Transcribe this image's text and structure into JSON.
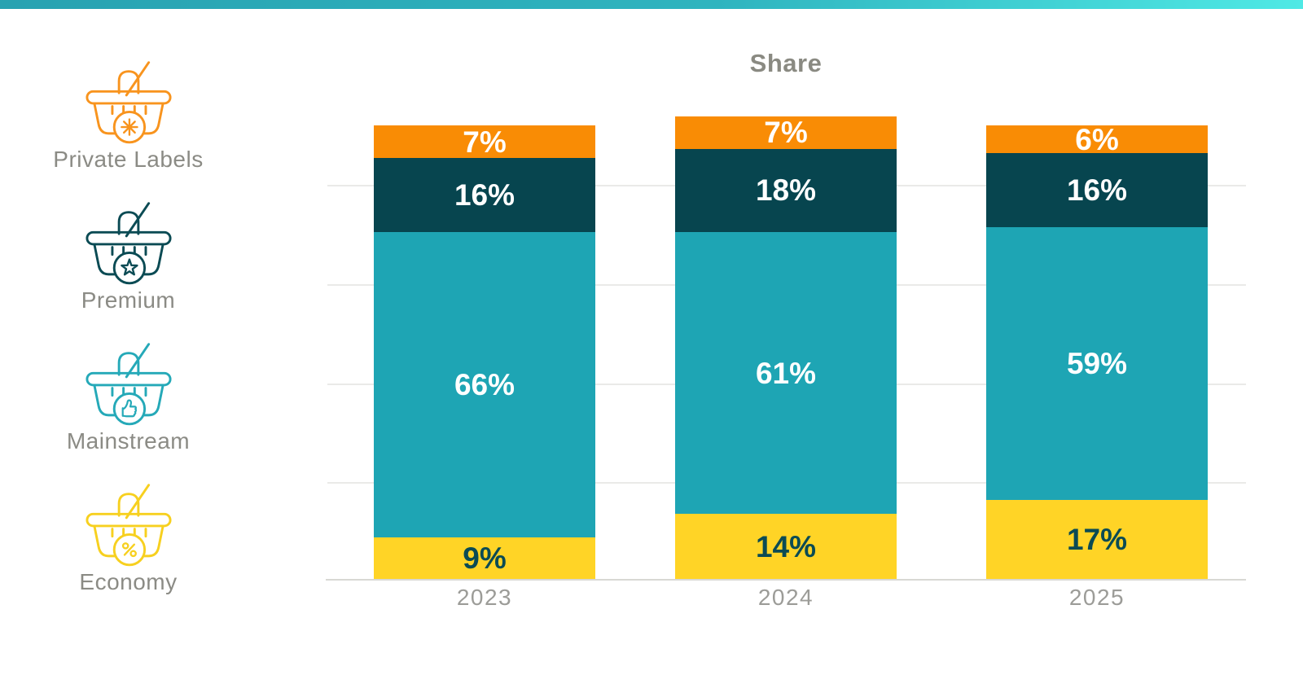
{
  "banner": {
    "gradient_colors": [
      "#28A2B1",
      "#2FB4BF",
      "#4FE9E5"
    ]
  },
  "legend": {
    "label_color": "#8B8B85",
    "items": [
      {
        "id": "private-labels",
        "label": "Private Labels",
        "color": "#F8941E",
        "badge_symbol": "asterisk"
      },
      {
        "id": "premium",
        "label": "Premium",
        "color": "#0B4B54",
        "badge_symbol": "star"
      },
      {
        "id": "mainstream",
        "label": "Mainstream",
        "color": "#25A9B8",
        "badge_symbol": "thumbs-up"
      },
      {
        "id": "economy",
        "label": "Economy",
        "color": "#F7D01F",
        "badge_symbol": "percent"
      }
    ]
  },
  "chart_data": {
    "type": "bar",
    "stacked": true,
    "title": "Share",
    "title_color": "#8A8A82",
    "categories": [
      "2023",
      "2024",
      "2025"
    ],
    "series_order": "top-to-bottom",
    "series": [
      {
        "name": "Private Labels",
        "color": "#F98C05",
        "label_color": "#FFFFFF",
        "values": [
          7,
          7,
          6
        ]
      },
      {
        "name": "Premium",
        "color": "#07454F",
        "label_color": "#FFFFFF",
        "values": [
          16,
          18,
          16
        ]
      },
      {
        "name": "Mainstream",
        "color": "#1EA5B4",
        "label_color": "#FFFFFF",
        "values": [
          66,
          61,
          59
        ]
      },
      {
        "name": "Economy",
        "color": "#FFD426",
        "label_color": "#0B4B54",
        "values": [
          9,
          14,
          17
        ]
      }
    ],
    "value_suffix": "%",
    "grid": true,
    "gridline_color": "#EAEAE8",
    "axis_color": "#D8D8D4",
    "category_label_color": "#9C9C98",
    "legend_position": "left",
    "value_axis_labels": "none"
  }
}
